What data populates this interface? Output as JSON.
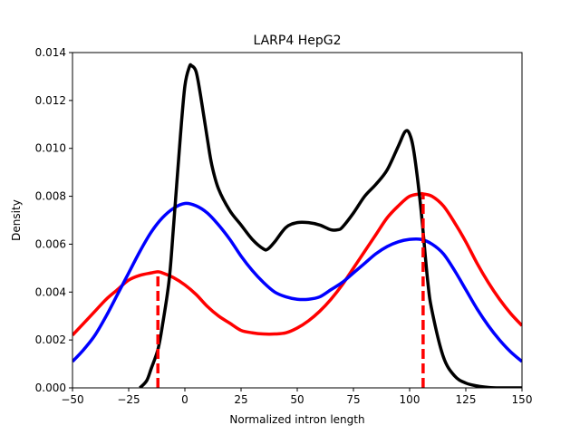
{
  "chart_data": {
    "type": "line",
    "title": "LARP4 HepG2",
    "xlabel": "Normalized intron length",
    "ylabel": "Density",
    "xlim": [
      -50,
      150
    ],
    "ylim": [
      0,
      0.014
    ],
    "x_ticks": [
      -50,
      -25,
      0,
      25,
      50,
      75,
      100,
      125,
      150
    ],
    "x_tick_labels": [
      "−50",
      "−25",
      "0",
      "25",
      "50",
      "75",
      "100",
      "125",
      "150"
    ],
    "y_ticks": [
      0,
      0.002,
      0.004,
      0.006,
      0.008,
      0.01,
      0.012,
      0.014
    ],
    "y_tick_labels": [
      "0.000",
      "0.002",
      "0.004",
      "0.006",
      "0.008",
      "0.010",
      "0.012",
      "0.014"
    ],
    "grid": false,
    "series": [
      {
        "color": "#ff0000",
        "x": [
          -50,
          -45,
          -40,
          -35,
          -30,
          -25,
          -20,
          -15,
          -12,
          -10,
          -5,
          0,
          5,
          10,
          15,
          20,
          25,
          30,
          35,
          40,
          45,
          50,
          55,
          60,
          65,
          70,
          75,
          80,
          85,
          90,
          95,
          100,
          105,
          106,
          110,
          115,
          120,
          125,
          130,
          135,
          140,
          145,
          150
        ],
        "y": [
          0.0022,
          0.0027,
          0.0032,
          0.0037,
          0.0041,
          0.0045,
          0.0047,
          0.0048,
          0.00485,
          0.0048,
          0.0046,
          0.0043,
          0.0039,
          0.0034,
          0.003,
          0.0027,
          0.0024,
          0.0023,
          0.00225,
          0.00225,
          0.0023,
          0.0025,
          0.0028,
          0.0032,
          0.0037,
          0.0043,
          0.005,
          0.0057,
          0.0064,
          0.0071,
          0.0076,
          0.008,
          0.0081,
          0.0081,
          0.008,
          0.0076,
          0.0069,
          0.0061,
          0.0052,
          0.0044,
          0.0037,
          0.0031,
          0.0026
        ]
      },
      {
        "color": "#0000ff",
        "x": [
          -50,
          -45,
          -40,
          -35,
          -30,
          -25,
          -20,
          -15,
          -10,
          -5,
          0,
          5,
          10,
          15,
          20,
          25,
          30,
          35,
          40,
          45,
          50,
          55,
          60,
          65,
          70,
          75,
          80,
          85,
          90,
          95,
          100,
          105,
          110,
          115,
          120,
          125,
          130,
          135,
          140,
          145,
          150
        ],
        "y": [
          0.0011,
          0.0016,
          0.0022,
          0.003,
          0.0039,
          0.0048,
          0.0057,
          0.0065,
          0.0071,
          0.0075,
          0.0077,
          0.0076,
          0.0073,
          0.0068,
          0.0062,
          0.0055,
          0.0049,
          0.0044,
          0.004,
          0.0038,
          0.0037,
          0.0037,
          0.0038,
          0.0041,
          0.0044,
          0.0048,
          0.0052,
          0.0056,
          0.0059,
          0.0061,
          0.0062,
          0.0062,
          0.006,
          0.0056,
          0.0049,
          0.0041,
          0.0033,
          0.0026,
          0.002,
          0.0015,
          0.0011
        ]
      },
      {
        "color": "#000000",
        "x": [
          -20,
          -17,
          -15,
          -12,
          -10,
          -7,
          -5,
          -2,
          0,
          2,
          3,
          5,
          7,
          10,
          12,
          15,
          20,
          25,
          30,
          35,
          37,
          40,
          45,
          50,
          55,
          60,
          65,
          68,
          70,
          75,
          80,
          85,
          90,
          95,
          98,
          100,
          102,
          105,
          108,
          110,
          115,
          120,
          125,
          130,
          135,
          140,
          150
        ],
        "y": [
          0.0,
          0.0003,
          0.0008,
          0.0016,
          0.0026,
          0.0045,
          0.0068,
          0.0105,
          0.0126,
          0.0134,
          0.01345,
          0.0132,
          0.0122,
          0.0104,
          0.0093,
          0.0083,
          0.0074,
          0.0068,
          0.0062,
          0.0058,
          0.0058,
          0.0061,
          0.0067,
          0.0069,
          0.0069,
          0.0068,
          0.0066,
          0.0066,
          0.0067,
          0.0073,
          0.008,
          0.0085,
          0.0091,
          0.0101,
          0.0107,
          0.0106,
          0.0098,
          0.0075,
          0.0045,
          0.0032,
          0.0013,
          0.0005,
          0.0002,
          8e-05,
          2e-05,
          0.0,
          0.0
        ]
      }
    ],
    "vlines": [
      {
        "x": -12,
        "y_top": 0.00485,
        "color": "#ff0000",
        "style": "dashed"
      },
      {
        "x": 106,
        "y_top": 0.0081,
        "color": "#ff0000",
        "style": "dashed"
      }
    ]
  }
}
